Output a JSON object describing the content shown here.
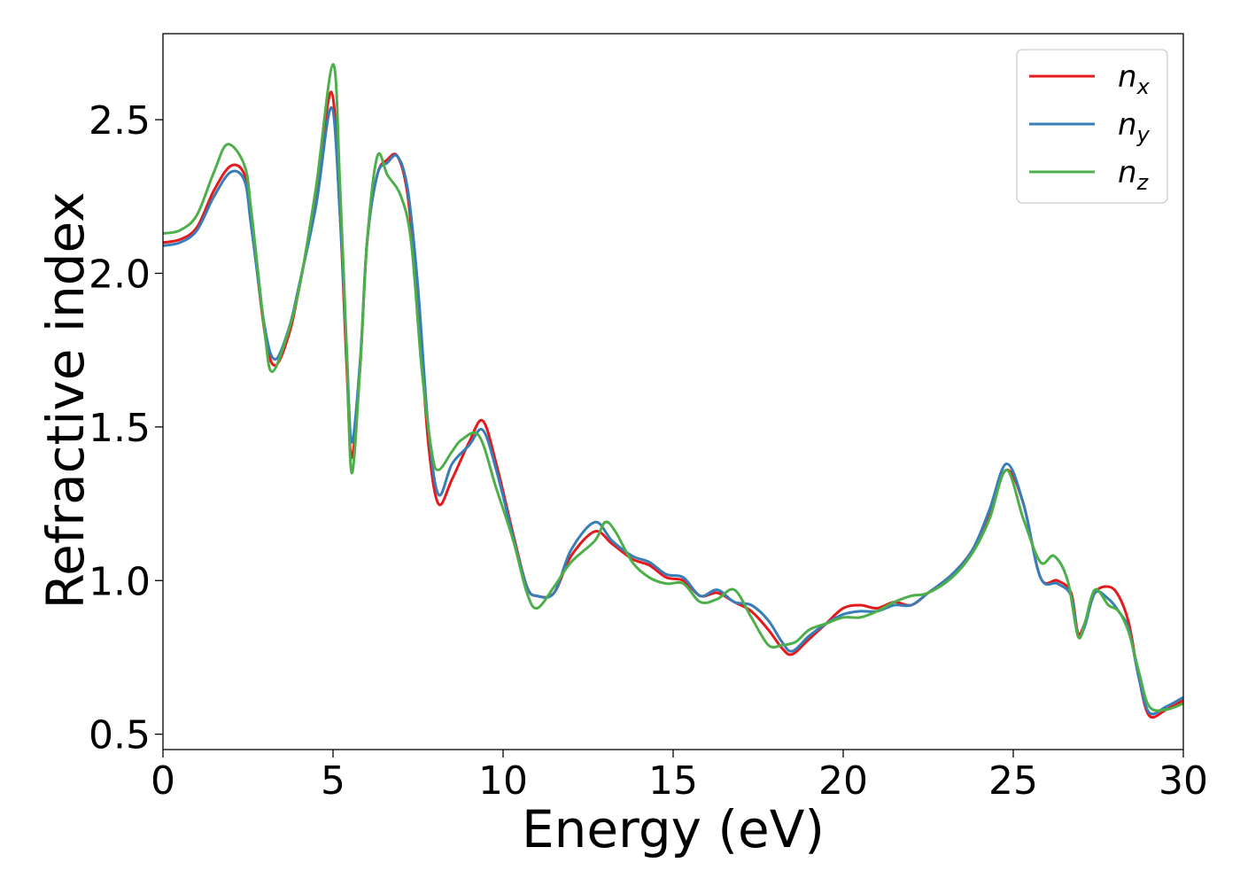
{
  "chart_data": {
    "type": "line",
    "title": "",
    "xlabel": "Energy (eV)",
    "ylabel": "Refractive index",
    "xlim": [
      0,
      30
    ],
    "ylim": [
      0.45,
      2.78
    ],
    "xticks": [
      0,
      5,
      10,
      15,
      20,
      25,
      30
    ],
    "xtick_labels": [
      "0",
      "5",
      "10",
      "15",
      "20",
      "25",
      "30"
    ],
    "yticks": [
      0.5,
      1.0,
      1.5,
      2.0,
      2.5
    ],
    "ytick_labels": [
      "0.5",
      "1.0",
      "1.5",
      "2.0",
      "2.5"
    ],
    "grid": false,
    "legend_position": "top-right",
    "series": [
      {
        "name": "n",
        "subscript": "x",
        "color": "#e41a1c",
        "points": [
          [
            0,
            2.1
          ],
          [
            0.5,
            2.11
          ],
          [
            1,
            2.15
          ],
          [
            1.5,
            2.27
          ],
          [
            2,
            2.35
          ],
          [
            2.4,
            2.32
          ],
          [
            2.6,
            2.17
          ],
          [
            3,
            1.8
          ],
          [
            3.3,
            1.7
          ],
          [
            3.7,
            1.8
          ],
          [
            4,
            1.95
          ],
          [
            4.5,
            2.25
          ],
          [
            4.95,
            2.59
          ],
          [
            5.2,
            2.2
          ],
          [
            5.4,
            1.7
          ],
          [
            5.55,
            1.4
          ],
          [
            5.8,
            1.7
          ],
          [
            6,
            2.1
          ],
          [
            6.3,
            2.32
          ],
          [
            6.6,
            2.37
          ],
          [
            6.9,
            2.38
          ],
          [
            7.2,
            2.25
          ],
          [
            7.5,
            1.9
          ],
          [
            7.8,
            1.45
          ],
          [
            8.1,
            1.25
          ],
          [
            8.5,
            1.33
          ],
          [
            9,
            1.45
          ],
          [
            9.4,
            1.52
          ],
          [
            9.8,
            1.38
          ],
          [
            10.3,
            1.15
          ],
          [
            10.7,
            0.98
          ],
          [
            11,
            0.95
          ],
          [
            11.5,
            0.96
          ],
          [
            12,
            1.08
          ],
          [
            12.7,
            1.16
          ],
          [
            13.2,
            1.12
          ],
          [
            13.8,
            1.07
          ],
          [
            14.3,
            1.05
          ],
          [
            14.8,
            1.01
          ],
          [
            15.3,
            1.0
          ],
          [
            15.8,
            0.95
          ],
          [
            16.3,
            0.96
          ],
          [
            16.8,
            0.93
          ],
          [
            17.3,
            0.9
          ],
          [
            17.8,
            0.84
          ],
          [
            18.2,
            0.78
          ],
          [
            18.5,
            0.76
          ],
          [
            19,
            0.81
          ],
          [
            19.5,
            0.86
          ],
          [
            20,
            0.91
          ],
          [
            20.5,
            0.92
          ],
          [
            21,
            0.91
          ],
          [
            21.5,
            0.93
          ],
          [
            22,
            0.92
          ],
          [
            22.5,
            0.96
          ],
          [
            23.2,
            1.02
          ],
          [
            23.8,
            1.1
          ],
          [
            24.3,
            1.22
          ],
          [
            24.8,
            1.36
          ],
          [
            25.3,
            1.25
          ],
          [
            25.8,
            1.01
          ],
          [
            26.3,
            1.0
          ],
          [
            26.7,
            0.96
          ],
          [
            26.9,
            0.83
          ],
          [
            27.1,
            0.86
          ],
          [
            27.4,
            0.96
          ],
          [
            27.8,
            0.98
          ],
          [
            28.1,
            0.95
          ],
          [
            28.4,
            0.86
          ],
          [
            28.7,
            0.68
          ],
          [
            29,
            0.56
          ],
          [
            29.5,
            0.58
          ],
          [
            30,
            0.61
          ]
        ]
      },
      {
        "name": "n",
        "subscript": "y",
        "color": "#377eb8",
        "points": [
          [
            0,
            2.09
          ],
          [
            0.5,
            2.1
          ],
          [
            1,
            2.14
          ],
          [
            1.5,
            2.25
          ],
          [
            2,
            2.33
          ],
          [
            2.4,
            2.3
          ],
          [
            2.6,
            2.15
          ],
          [
            3,
            1.82
          ],
          [
            3.3,
            1.72
          ],
          [
            3.7,
            1.82
          ],
          [
            4,
            1.96
          ],
          [
            4.5,
            2.22
          ],
          [
            4.95,
            2.54
          ],
          [
            5.2,
            2.2
          ],
          [
            5.4,
            1.75
          ],
          [
            5.55,
            1.45
          ],
          [
            5.8,
            1.72
          ],
          [
            6,
            2.1
          ],
          [
            6.3,
            2.32
          ],
          [
            6.6,
            2.36
          ],
          [
            6.9,
            2.38
          ],
          [
            7.2,
            2.27
          ],
          [
            7.5,
            1.95
          ],
          [
            7.8,
            1.5
          ],
          [
            8.1,
            1.28
          ],
          [
            8.5,
            1.38
          ],
          [
            9,
            1.44
          ],
          [
            9.4,
            1.49
          ],
          [
            9.8,
            1.36
          ],
          [
            10.3,
            1.14
          ],
          [
            10.7,
            0.98
          ],
          [
            11,
            0.95
          ],
          [
            11.5,
            0.96
          ],
          [
            12,
            1.1
          ],
          [
            12.7,
            1.19
          ],
          [
            13.2,
            1.13
          ],
          [
            13.8,
            1.08
          ],
          [
            14.3,
            1.06
          ],
          [
            14.8,
            1.02
          ],
          [
            15.3,
            1.01
          ],
          [
            15.8,
            0.95
          ],
          [
            16.3,
            0.97
          ],
          [
            16.8,
            0.93
          ],
          [
            17.3,
            0.92
          ],
          [
            17.8,
            0.87
          ],
          [
            18.2,
            0.8
          ],
          [
            18.5,
            0.77
          ],
          [
            19,
            0.82
          ],
          [
            19.5,
            0.86
          ],
          [
            20,
            0.89
          ],
          [
            20.5,
            0.9
          ],
          [
            21,
            0.9
          ],
          [
            21.5,
            0.92
          ],
          [
            22,
            0.92
          ],
          [
            22.5,
            0.96
          ],
          [
            23.2,
            1.02
          ],
          [
            23.8,
            1.1
          ],
          [
            24.3,
            1.23
          ],
          [
            24.8,
            1.38
          ],
          [
            25.3,
            1.25
          ],
          [
            25.8,
            1.01
          ],
          [
            26.3,
            0.99
          ],
          [
            26.7,
            0.95
          ],
          [
            26.9,
            0.82
          ],
          [
            27.1,
            0.85
          ],
          [
            27.4,
            0.96
          ],
          [
            27.8,
            0.94
          ],
          [
            28.1,
            0.9
          ],
          [
            28.4,
            0.84
          ],
          [
            28.7,
            0.68
          ],
          [
            29,
            0.57
          ],
          [
            29.5,
            0.59
          ],
          [
            30,
            0.62
          ]
        ]
      },
      {
        "name": "n",
        "subscript": "z",
        "color": "#4daf4a",
        "points": [
          [
            0,
            2.13
          ],
          [
            0.5,
            2.14
          ],
          [
            1,
            2.19
          ],
          [
            1.5,
            2.33
          ],
          [
            1.9,
            2.42
          ],
          [
            2.4,
            2.35
          ],
          [
            2.6,
            2.2
          ],
          [
            3,
            1.8
          ],
          [
            3.2,
            1.68
          ],
          [
            3.6,
            1.78
          ],
          [
            4,
            1.95
          ],
          [
            4.5,
            2.28
          ],
          [
            5,
            2.68
          ],
          [
            5.2,
            2.3
          ],
          [
            5.4,
            1.75
          ],
          [
            5.55,
            1.35
          ],
          [
            5.8,
            1.7
          ],
          [
            6,
            2.1
          ],
          [
            6.3,
            2.38
          ],
          [
            6.6,
            2.32
          ],
          [
            7,
            2.25
          ],
          [
            7.3,
            2.1
          ],
          [
            7.6,
            1.7
          ],
          [
            7.9,
            1.42
          ],
          [
            8.1,
            1.36
          ],
          [
            8.5,
            1.42
          ],
          [
            8.8,
            1.46
          ],
          [
            9.3,
            1.47
          ],
          [
            9.8,
            1.3
          ],
          [
            10.3,
            1.13
          ],
          [
            10.7,
            0.96
          ],
          [
            11,
            0.91
          ],
          [
            11.5,
            0.98
          ],
          [
            12,
            1.06
          ],
          [
            12.7,
            1.13
          ],
          [
            13,
            1.19
          ],
          [
            13.3,
            1.16
          ],
          [
            13.8,
            1.06
          ],
          [
            14.3,
            1.01
          ],
          [
            14.8,
            0.99
          ],
          [
            15.3,
            0.99
          ],
          [
            15.8,
            0.93
          ],
          [
            16.3,
            0.94
          ],
          [
            16.8,
            0.97
          ],
          [
            17.3,
            0.88
          ],
          [
            17.8,
            0.79
          ],
          [
            18.2,
            0.79
          ],
          [
            18.6,
            0.8
          ],
          [
            19,
            0.84
          ],
          [
            19.5,
            0.86
          ],
          [
            20,
            0.88
          ],
          [
            20.5,
            0.88
          ],
          [
            21,
            0.9
          ],
          [
            21.5,
            0.93
          ],
          [
            22,
            0.95
          ],
          [
            22.5,
            0.96
          ],
          [
            23.2,
            1.01
          ],
          [
            23.8,
            1.09
          ],
          [
            24.3,
            1.2
          ],
          [
            24.8,
            1.36
          ],
          [
            25.3,
            1.2
          ],
          [
            25.8,
            1.06
          ],
          [
            26.2,
            1.08
          ],
          [
            26.6,
            1.0
          ],
          [
            26.9,
            0.82
          ],
          [
            27.1,
            0.86
          ],
          [
            27.4,
            0.97
          ],
          [
            27.8,
            0.92
          ],
          [
            28.1,
            0.9
          ],
          [
            28.4,
            0.83
          ],
          [
            28.7,
            0.7
          ],
          [
            29,
            0.59
          ],
          [
            29.5,
            0.58
          ],
          [
            30,
            0.6
          ]
        ]
      }
    ]
  }
}
